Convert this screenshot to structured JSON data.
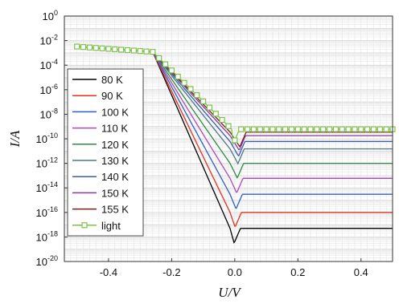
{
  "chart_data": {
    "type": "line",
    "xlabel": "U/V",
    "ylabel": "I/A",
    "y_scale": "log",
    "xlim": [
      -0.54,
      0.5
    ],
    "ylim": [
      1e-20,
      1
    ],
    "grid": true,
    "x_ticks": [
      {
        "v": -0.4,
        "label": "-0.4"
      },
      {
        "v": -0.2,
        "label": "-0.2"
      },
      {
        "v": 0.0,
        "label": "0.0"
      },
      {
        "v": 0.2,
        "label": "0.2"
      },
      {
        "v": 0.4,
        "label": "0.4"
      }
    ],
    "y_ticks": [
      {
        "exp": 0,
        "base": "10",
        "sup": "0"
      },
      {
        "exp": -2,
        "base": "10",
        "sup": "-2"
      },
      {
        "exp": -4,
        "base": "10",
        "sup": "-4"
      },
      {
        "exp": -6,
        "base": "10",
        "sup": "-6"
      },
      {
        "exp": -8,
        "base": "10",
        "sup": "-8"
      },
      {
        "exp": -10,
        "base": "10",
        "sup": "-10"
      },
      {
        "exp": -12,
        "base": "10",
        "sup": "-12"
      },
      {
        "exp": -14,
        "base": "10",
        "sup": "-14"
      },
      {
        "exp": -16,
        "base": "10",
        "sup": "-16"
      },
      {
        "exp": -18,
        "base": "10",
        "sup": "-18"
      },
      {
        "exp": -20,
        "base": "10",
        "sup": "-20"
      }
    ],
    "legend": {
      "position": "left"
    },
    "series": [
      {
        "name": "80 K",
        "color": "#000000",
        "curve": {
          "k": 0.21,
          "vz": -0.015,
          "vmin": -0.002,
          "floor": 5e-18,
          "hot": 0.0012,
          "vh": -0.26
        }
      },
      {
        "name": "90 K",
        "color": "#e8301c",
        "curve": {
          "k": 0.19,
          "vz": -0.015,
          "vmin": 0.001,
          "floor": 1e-16,
          "hot": 0.0012,
          "vh": -0.26
        }
      },
      {
        "name": "100 K",
        "color": "#2c5fc9",
        "curve": {
          "k": 0.175,
          "vz": -0.015,
          "vmin": 0.004,
          "floor": 3e-15,
          "hot": 0.0012,
          "vh": -0.26
        }
      },
      {
        "name": "110 K",
        "color": "#b249b5",
        "curve": {
          "k": 0.16,
          "vz": -0.015,
          "vmin": 0.006,
          "floor": 6e-14,
          "hot": 0.0012,
          "vh": -0.26
        }
      },
      {
        "name": "120 K",
        "color": "#2e8b3e",
        "curve": {
          "k": 0.145,
          "vz": -0.015,
          "vmin": 0.008,
          "floor": 1e-12,
          "hot": 0.0012,
          "vh": -0.26
        }
      },
      {
        "name": "130 K",
        "color": "#4a7a86",
        "curve": {
          "k": 0.13,
          "vz": -0.015,
          "vmin": 0.01,
          "floor": 1.5e-11,
          "hot": 0.0012,
          "vh": -0.26
        }
      },
      {
        "name": "140 K",
        "color": "#3a5bb5",
        "curve": {
          "k": 0.115,
          "vz": -0.015,
          "vmin": 0.012,
          "floor": 6e-11,
          "hot": 0.0012,
          "vh": -0.26
        }
      },
      {
        "name": "150 K",
        "color": "#8a3aa0",
        "curve": {
          "k": 0.1,
          "vz": -0.015,
          "vmin": 0.014,
          "floor": 1.8e-10,
          "hot": 0.0012,
          "vh": -0.26
        }
      },
      {
        "name": "155 K",
        "color": "#7a2020",
        "curve": {
          "k": 0.085,
          "vz": -0.015,
          "vmin": 0.016,
          "floor": 3.5e-10,
          "hot": 0.0012,
          "vh": -0.26
        }
      },
      {
        "name": "light",
        "color": "#7cc24a",
        "marker": "square-open",
        "curve": {
          "k": 0.07,
          "vz": -0.01,
          "vmin": -0.005,
          "floor": 6e-10,
          "hot": 0.0012,
          "vh": -0.26
        }
      }
    ]
  }
}
